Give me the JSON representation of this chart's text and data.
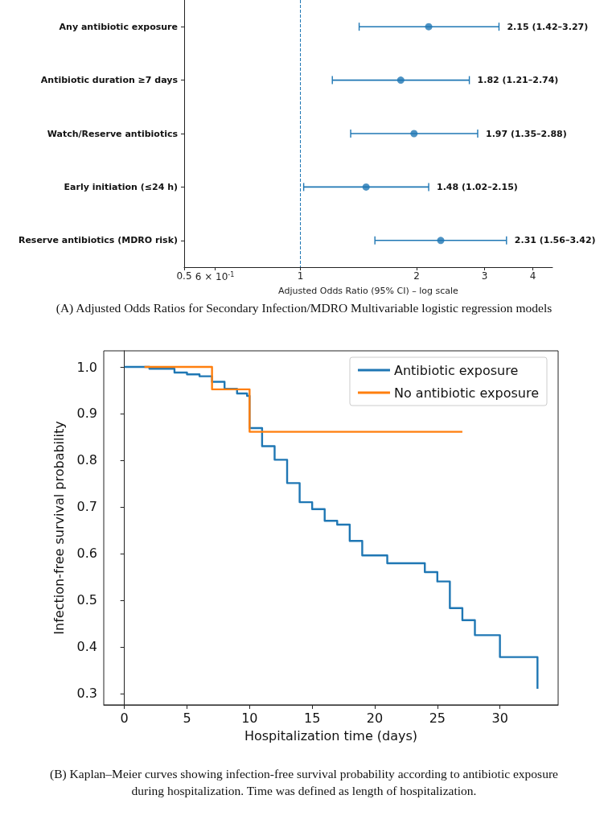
{
  "chart_data": [
    {
      "type": "scatter",
      "orientation": "horizontal",
      "categories": [
        "Any antibiotic exposure",
        "Antibiotic duration ≥7 days",
        "Watch/Reserve antibiotics",
        "Early initiation (≤24 h)",
        "Reserve antibiotics (MDRO risk)"
      ],
      "values": [
        2.15,
        1.82,
        1.97,
        1.48,
        2.31
      ],
      "errors": [
        [
          1.42,
          3.27
        ],
        [
          1.21,
          2.74
        ],
        [
          1.35,
          2.88
        ],
        [
          1.02,
          2.15
        ],
        [
          1.56,
          3.42
        ]
      ],
      "color": "#1f77b4",
      "marker": "circle",
      "log": "x",
      "xlim": [
        0.5,
        4.5
      ],
      "xticks": [
        0.5,
        {
          "value": 0.6,
          "label": "6 × 10$^{-1}$"
        },
        1,
        2,
        3,
        4
      ],
      "xlabel": "Adjusted Odds Ratio (95% CI) – log scale",
      "ref_lines": [
        {
          "axis": "x",
          "value": 1,
          "color": "#1f77b4",
          "line_style": "dashed"
        }
      ],
      "annotations": [
        {
          "text": "2.15 (1.42–3.27)",
          "x": 3.27,
          "y": "Any antibiotic exposure"
        },
        {
          "text": "1.82 (1.21–2.74)",
          "x": 2.74,
          "y": "Antibiotic duration ≥7 days"
        },
        {
          "text": "1.97 (1.35–2.88)",
          "x": 2.88,
          "y": "Watch/Reserve antibiotics"
        },
        {
          "text": "1.48 (1.02–2.15)",
          "x": 2.15,
          "y": "Early initiation (≤24 h)"
        },
        {
          "text": "2.31 (1.56–3.42)",
          "x": 3.42,
          "y": "Reserve antibiotics (MDRO risk)"
        },
        "(A) Adjusted Odds Ratios for Secondary Infection/MDRO Multivariable logistic regression models"
      ]
    },
    {
      "type": "step",
      "xlabel": "Hospitalization time (days)",
      "ylabel": "Infection-free survival probability",
      "series": [
        {
          "name": "Antibiotic exposure",
          "color": "#1f77b4",
          "x": [
            0,
            2,
            4,
            5,
            6,
            7,
            8,
            9,
            9.8,
            10,
            11,
            12,
            13,
            14,
            15,
            16,
            17,
            18,
            19,
            21,
            24,
            25,
            26,
            27,
            28,
            30,
            33
          ],
          "values": [
            1.0,
            0.996,
            0.988,
            0.984,
            0.98,
            0.968,
            0.953,
            0.943,
            0.938,
            0.869,
            0.83,
            0.801,
            0.751,
            0.71,
            0.695,
            0.67,
            0.662,
            0.627,
            0.596,
            0.579,
            0.56,
            0.54,
            0.483,
            0.457,
            0.425,
            0.378,
            0.31
          ]
        },
        {
          "name": "No antibiotic exposure",
          "color": "#ff7f0e",
          "x": [
            1.6,
            7,
            10,
            27
          ],
          "values": [
            1.0,
            0.952,
            0.861,
            0.861
          ]
        }
      ],
      "xlim": [
        -1.65,
        34.65
      ],
      "xticks": [
        0,
        5,
        10,
        15,
        20,
        25,
        30
      ],
      "ylim": [
        0.2755,
        1.0345
      ],
      "yticks": [
        0.3,
        0.4,
        0.5,
        0.6,
        0.7,
        0.8,
        0.9,
        {
          "value": 1,
          "label": "1.0"
        }
      ],
      "legend": "top right",
      "annotations": [
        "(B) Kaplan–Meier curves showing infection-free survival probability according to antibiotic exposure during hospitalization. Time was defined as length of hospitalization."
      ]
    }
  ]
}
